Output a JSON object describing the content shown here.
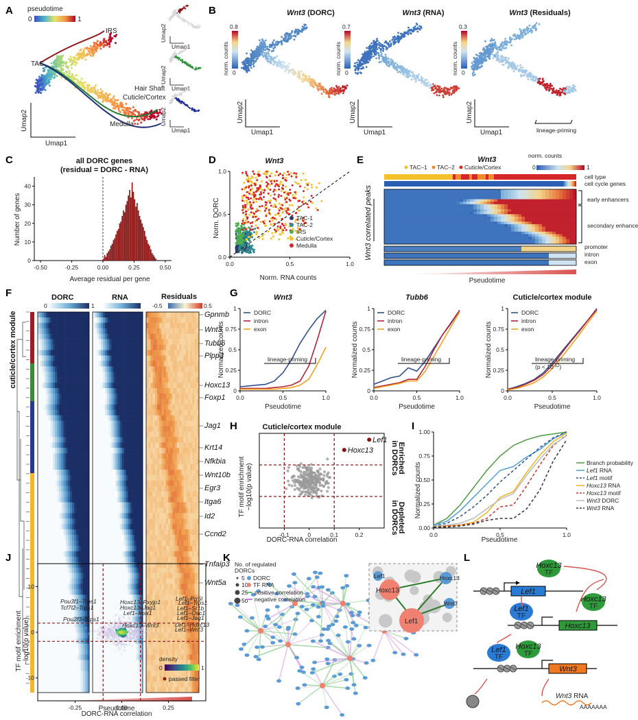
{
  "panels": {
    "A": {
      "letter": "A",
      "legend_title": "pseudotime",
      "scale_min": "0",
      "scale_max": "1",
      "labels": [
        "IRS",
        "TAC",
        "Hair Shaft",
        "Cuticle/Cortex",
        "Medulla"
      ],
      "xlabel": "Umap1",
      "ylabel": "Umap2"
    },
    "B": {
      "letter": "B",
      "plots": [
        {
          "gene": "Wnt3",
          "suffix": " (DORC)",
          "scale_max": "0.8"
        },
        {
          "gene": "Wnt3",
          "suffix": " (RNA)",
          "scale_max": "0.7"
        },
        {
          "gene": "Wnt3",
          "suffix": " (Residuals)",
          "scale_max": "0.3"
        }
      ],
      "scale_min": "0",
      "legend_label": "norm. counts",
      "xlabel": "Umap1",
      "ylabel": "Umap2",
      "annotation": "lineage-priming"
    },
    "C": {
      "letter": "C",
      "title_line1": "all DORC genes",
      "title_line2": "(residual = DORC - RNA)",
      "xlabel": "Average residual per gene",
      "ylabel": "Number of genes"
    },
    "D": {
      "letter": "D",
      "title": "Wnt3",
      "xlabel": "Norm. RNA counts",
      "ylabel": "Norm. DORC"
    },
    "E": {
      "letter": "E",
      "title": "Wnt3",
      "legend_label": "norm. counts",
      "scale_min": "0",
      "scale_max": "1",
      "celltypes": [
        "TAC–1",
        "TAC–2",
        "Cuticle/Cortex"
      ],
      "rows": [
        "cell type",
        "cell cycle genes",
        "early enhancers",
        "secondary enhancers",
        "promoter",
        "intron",
        "exon"
      ],
      "ylabel": "Wnt3 correlated peaks",
      "xlabel": "Pseudotime"
    },
    "F": {
      "letter": "F",
      "col_dorc": "DORC",
      "col_rna": "RNA",
      "col_res": "Residuals",
      "dorc_min": "0",
      "dorc_max": "1",
      "res_min": "-0.5",
      "res_max": "0.5",
      "module_label": "cuticle/cortex module",
      "xlabel": "Pseudotime",
      "genes": [
        "Gpnmb",
        "Wnt3",
        "Tubb6",
        "Plpp3",
        "Hoxc13",
        "Foxp1",
        "Jag1",
        "Krt14",
        "Nfkbia",
        "Wnt10b",
        "Egr3",
        "Itga6",
        "Id2",
        "Ccnd2",
        "Tnfaip3",
        "Wnt5a"
      ]
    },
    "G": {
      "letter": "G",
      "ylabel": "Normalized counts",
      "xlabel": "Pseudotime",
      "annot": "lineage-priming",
      "pval": "(p < 10",
      "plots": [
        {
          "title": "Wnt3"
        },
        {
          "title": "Tubb6"
        },
        {
          "title": "Cuticle/cortex module"
        }
      ],
      "legend": [
        "DORC",
        "intron",
        "exon"
      ]
    },
    "H": {
      "letter": "H",
      "title": "Cuticle/cortex module",
      "xlabel": "DORC-RNA correlation",
      "ylabel1": "TF motif enrichment",
      "ylabel2": "−log10(p value)",
      "enriched1": "Enriched",
      "enriched2": "in DORCs",
      "depleted1": "Depleted",
      "depleted2": "in DORCs",
      "pt1": "Lef1",
      "pt2": "Hoxc13"
    },
    "I": {
      "letter": "I",
      "xlabel": "Pseudotime",
      "ylabel": "Normalized counts",
      "legend": [
        {
          "label": "Branch probability",
          "color": "#4a9b3e",
          "dash": false
        },
        {
          "label": "Lef1 RNA",
          "color": "#4f9fd6",
          "dash": false
        },
        {
          "label": "Lef1 motif",
          "color": "#2b4f8c",
          "dash": true
        },
        {
          "label": "Hoxc13 RNA",
          "color": "#f2b418",
          "dash": false
        },
        {
          "label": "Hoxc13 motif",
          "color": "#c0392b",
          "dash": true
        },
        {
          "label": "Wnt3 DORC",
          "color": "#bbbbbb",
          "dash": false
        },
        {
          "label": "Wnt3 RNA",
          "color": "#333333",
          "dash": true
        }
      ]
    },
    "J": {
      "letter": "J",
      "xlabel": "DORC-RNA correlation",
      "ylabel1": "TF motif enrichment",
      "ylabel2": "−log10(p value)",
      "legend_density": "density",
      "d_min": "0",
      "d_max": "1",
      "passed": "passed filter",
      "pairs": [
        "Pou3f1–Trps1",
        "Tcf7l2–Trps1",
        "Pou2f3–Trps1",
        "Hoxc13–Pxyjp1",
        "Hoxc13–Jag1",
        "Lef1–Msx1",
        "Hoxc13–Wnt3",
        "Lef1–Prr5l",
        "Lef1–Trps1",
        "Lef1–Sr1b",
        "Lef1–Osc1",
        "Lef1–Jag1",
        "Lef1–Hoxc13",
        "Lef1–Wnt3"
      ]
    },
    "K": {
      "letter": "K",
      "legend_title1": "No. of regulated",
      "legend_title2": "DORCs",
      "sizes": [
        "5",
        "10",
        "25",
        "50"
      ],
      "dorc": "DORC",
      "tfrna": "TF RNA",
      "pos": "positive correlation",
      "neg": "negative correlation",
      "inset": [
        "Lef1",
        "Hoxc13",
        "Wnt3"
      ]
    },
    "L": {
      "letter": "L",
      "tf": "TF",
      "lef1": "Lef1",
      "hoxc13": "Hoxc13",
      "wnt3": "Wnt3",
      "rna": "Wnt3 RNA",
      "polya": "AAAAAAA"
    }
  },
  "chart_data": [
    {
      "type": "bar",
      "panel": "C",
      "title": "all DORC genes (residual = DORC - RNA)",
      "xlabel": "Average residual per gene",
      "ylabel": "Number of genes",
      "xlim": [
        -0.55,
        0.55
      ],
      "ylim": [
        0,
        45
      ],
      "xticks": [
        -0.5,
        -0.25,
        0,
        0.25,
        0.5
      ],
      "yticks": [
        0,
        10,
        20,
        30,
        40
      ],
      "bin_width": 0.01,
      "x": [
        0,
        0.01,
        0.02,
        0.03,
        0.04,
        0.05,
        0.06,
        0.07,
        0.08,
        0.09,
        0.1,
        0.11,
        0.12,
        0.13,
        0.14,
        0.15,
        0.16,
        0.17,
        0.18,
        0.19,
        0.2,
        0.21,
        0.22,
        0.23,
        0.24,
        0.25,
        0.26,
        0.27,
        0.28,
        0.29,
        0.3,
        0.31,
        0.32,
        0.33,
        0.34,
        0.35,
        0.36,
        0.37,
        0.38,
        0.39,
        0.4,
        0.41,
        0.42
      ],
      "values": [
        1,
        3,
        2,
        4,
        5,
        6,
        8,
        9,
        11,
        12,
        14,
        16,
        17,
        20,
        21,
        24,
        27,
        26,
        30,
        32,
        35,
        38,
        34,
        42,
        37,
        33,
        29,
        31,
        27,
        24,
        22,
        20,
        18,
        16,
        13,
        11,
        9,
        8,
        6,
        4,
        3,
        2,
        1
      ]
    },
    {
      "type": "scatter",
      "panel": "D",
      "title": "Wnt3",
      "xlabel": "Norm. RNA counts",
      "ylabel": "Norm. DORC",
      "xlim": [
        0,
        1
      ],
      "ylim": [
        0,
        1
      ],
      "xticks": [
        0,
        0.5,
        1.0
      ],
      "yticks": [
        0,
        0.5,
        1.0
      ],
      "series": [
        {
          "name": "TAC-1",
          "color": "#2a3a6a"
        },
        {
          "name": "TAC-2",
          "color": "#2a8c8c"
        },
        {
          "name": "IRS",
          "color": "#4caf50"
        },
        {
          "name": "Cuticle/Cortex",
          "color": "#f3c12c"
        },
        {
          "name": "Medulla",
          "color": "#d62728"
        }
      ]
    },
    {
      "type": "line",
      "panel": "G1",
      "title": "Wnt3",
      "xlim": [
        0,
        1
      ],
      "ylim": [
        0,
        1
      ],
      "xticks": [
        0,
        0.5,
        1.0
      ],
      "yticks": [
        0,
        0.25,
        0.5,
        0.75,
        1
      ],
      "x": [
        0,
        0.1,
        0.2,
        0.3,
        0.4,
        0.5,
        0.6,
        0.7,
        0.8,
        0.9,
        1.0
      ],
      "series": [
        {
          "name": "DORC",
          "color": "#2f4f8f",
          "values": [
            0.05,
            0.06,
            0.07,
            0.08,
            0.12,
            0.22,
            0.38,
            0.58,
            0.74,
            0.88,
            0.98
          ]
        },
        {
          "name": "intron",
          "color": "#b22234",
          "values": [
            0.03,
            0.03,
            0.03,
            0.03,
            0.04,
            0.05,
            0.07,
            0.12,
            0.3,
            0.62,
            0.97
          ]
        },
        {
          "name": "exon",
          "color": "#f0a020",
          "values": [
            0.02,
            0.02,
            0.02,
            0.02,
            0.02,
            0.03,
            0.04,
            0.07,
            0.14,
            0.32,
            0.53
          ]
        }
      ]
    },
    {
      "type": "line",
      "panel": "G2",
      "title": "Tubb6",
      "xlim": [
        0,
        1
      ],
      "ylim": [
        0,
        1
      ],
      "xticks": [
        0,
        0.5,
        1.0
      ],
      "yticks": [
        0,
        0.25,
        0.5,
        0.75,
        1
      ],
      "x": [
        0,
        0.1,
        0.2,
        0.3,
        0.4,
        0.5,
        0.6,
        0.7,
        0.8,
        0.9,
        1.0
      ],
      "series": [
        {
          "name": "DORC",
          "color": "#2f4f8f",
          "values": [
            0.08,
            0.12,
            0.16,
            0.18,
            0.28,
            0.24,
            0.36,
            0.52,
            0.68,
            0.82,
            0.98
          ]
        },
        {
          "name": "intron",
          "color": "#b22234",
          "values": [
            0.04,
            0.06,
            0.08,
            0.1,
            0.14,
            0.14,
            0.3,
            0.5,
            0.68,
            0.83,
            0.98
          ]
        },
        {
          "name": "exon",
          "color": "#f0a020",
          "values": [
            0.03,
            0.05,
            0.07,
            0.09,
            0.12,
            0.12,
            0.24,
            0.42,
            0.6,
            0.78,
            0.96
          ]
        }
      ]
    },
    {
      "type": "line",
      "panel": "G3",
      "title": "Cuticle/cortex module",
      "xlim": [
        0,
        1
      ],
      "ylim": [
        0,
        1
      ],
      "xticks": [
        0,
        0.5,
        1.0
      ],
      "yticks": [
        0,
        0.25,
        0.5,
        0.75,
        1
      ],
      "x": [
        0,
        0.1,
        0.2,
        0.3,
        0.4,
        0.5,
        0.6,
        0.7,
        0.8,
        0.9,
        1.0
      ],
      "series": [
        {
          "name": "DORC",
          "color": "#2f4f8f",
          "values": [
            0.02,
            0.05,
            0.09,
            0.14,
            0.22,
            0.34,
            0.47,
            0.6,
            0.73,
            0.86,
            1.0
          ]
        },
        {
          "name": "intron",
          "color": "#b22234",
          "values": [
            0.02,
            0.04,
            0.08,
            0.13,
            0.2,
            0.31,
            0.45,
            0.59,
            0.72,
            0.86,
            0.99
          ]
        },
        {
          "name": "exon",
          "color": "#f0a020",
          "values": [
            0.01,
            0.03,
            0.06,
            0.1,
            0.17,
            0.27,
            0.4,
            0.54,
            0.68,
            0.83,
            0.97
          ]
        }
      ]
    },
    {
      "type": "scatter",
      "panel": "H",
      "title": "Cuticle/cortex module",
      "xlabel": "DORC-RNA correlation",
      "xlim": [
        -0.2,
        0.3
      ],
      "ylim": [
        -6,
        6
      ],
      "xticks": [
        -0.1,
        0,
        0.1,
        0.2
      ],
      "labeled_points": [
        {
          "name": "Lef1",
          "x": 0.24,
          "y": 5.2
        },
        {
          "name": "Hoxc13",
          "x": 0.14,
          "y": 3.9
        }
      ]
    },
    {
      "type": "line",
      "panel": "I",
      "xlabel": "Pseudotime",
      "ylabel": "Normalized counts",
      "xlim": [
        0,
        1
      ],
      "ylim": [
        0,
        1
      ],
      "xticks": [
        0,
        0.5,
        1.0
      ],
      "yticks": [
        0,
        0.25,
        0.5,
        0.75,
        1
      ],
      "x": [
        0,
        0.1,
        0.2,
        0.3,
        0.4,
        0.5,
        0.6,
        0.7,
        0.8,
        0.9,
        1.0
      ],
      "series": [
        {
          "name": "Branch probability",
          "values": [
            0.03,
            0.1,
            0.24,
            0.42,
            0.6,
            0.75,
            0.86,
            0.92,
            0.96,
            0.98,
            1.0
          ]
        },
        {
          "name": "Lef1 RNA",
          "values": [
            0.03,
            0.07,
            0.18,
            0.32,
            0.46,
            0.6,
            0.64,
            0.74,
            0.82,
            0.93,
            1.0
          ]
        },
        {
          "name": "Lef1 motif",
          "values": [
            0.02,
            0.05,
            0.12,
            0.22,
            0.34,
            0.48,
            0.6,
            0.72,
            0.84,
            0.94,
            1.0
          ]
        },
        {
          "name": "Hoxc13 RNA",
          "values": [
            0.02,
            0.02,
            0.03,
            0.06,
            0.16,
            0.32,
            0.38,
            0.58,
            0.76,
            0.9,
            0.99
          ]
        },
        {
          "name": "Hoxc13 motif",
          "values": [
            0.01,
            0.02,
            0.03,
            0.05,
            0.1,
            0.22,
            0.24,
            0.44,
            0.66,
            0.86,
            0.97
          ]
        },
        {
          "name": "Wnt3 DORC",
          "values": [
            0.02,
            0.03,
            0.05,
            0.1,
            0.2,
            0.3,
            0.36,
            0.55,
            0.72,
            0.87,
            0.96
          ]
        },
        {
          "name": "Wnt3 RNA",
          "values": [
            0.01,
            0.01,
            0.02,
            0.04,
            0.08,
            0.1,
            0.1,
            0.2,
            0.4,
            0.7,
            0.92
          ]
        }
      ]
    },
    {
      "type": "scatter",
      "panel": "J",
      "xlabel": "DORC-RNA correlation",
      "xlim": [
        -0.45,
        0.45
      ],
      "ylim": [
        -15,
        15
      ],
      "xticks": [
        -0.25,
        0,
        0.25
      ],
      "yticks": [
        -10,
        0,
        10
      ]
    }
  ]
}
